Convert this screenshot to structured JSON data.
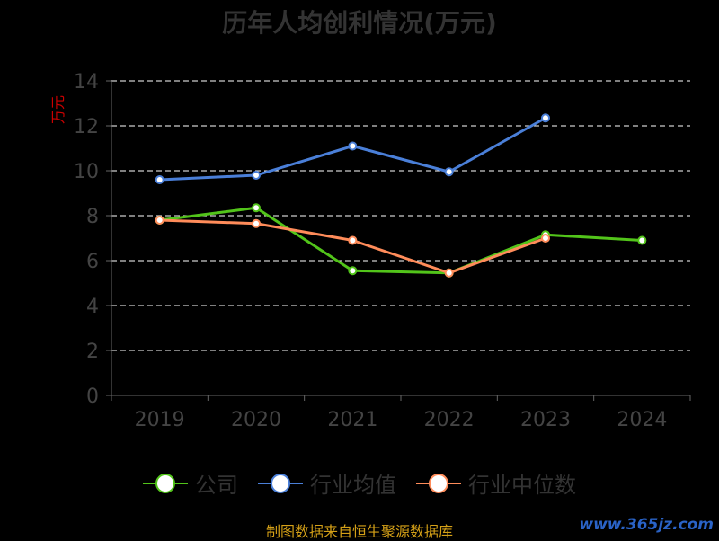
{
  "title": "历年人均创利情况(万元)",
  "source": "制图数据来自恒生聚源数据库",
  "watermark": "www.365jz.com",
  "colors": {
    "background": "#000000",
    "axis": "#666666",
    "grid": "#ffffff",
    "tick_text": "#444444",
    "ylabel": "#cc0000",
    "title": "#333333"
  },
  "chart_data": {
    "type": "line",
    "title": "历年人均创利情况(万元)",
    "xlabel": "",
    "ylabel": "万元",
    "categories": [
      "2019",
      "2020",
      "2021",
      "2022",
      "2023",
      "2024"
    ],
    "ylim": [
      0,
      14
    ],
    "yticks": [
      0,
      2,
      4,
      6,
      8,
      10,
      12,
      14
    ],
    "grid": true,
    "legend": "bottom",
    "series": [
      {
        "name": "公司",
        "color": "#52c41a",
        "values": [
          7.8,
          8.35,
          5.55,
          5.45,
          7.15,
          6.9
        ]
      },
      {
        "name": "行业均值",
        "color": "#4a7fd8",
        "values": [
          9.6,
          9.8,
          11.1,
          9.95,
          12.35,
          null
        ]
      },
      {
        "name": "行业中位数",
        "color": "#ff8c5a",
        "values": [
          7.8,
          7.65,
          6.9,
          5.45,
          7.0,
          null
        ]
      }
    ]
  }
}
